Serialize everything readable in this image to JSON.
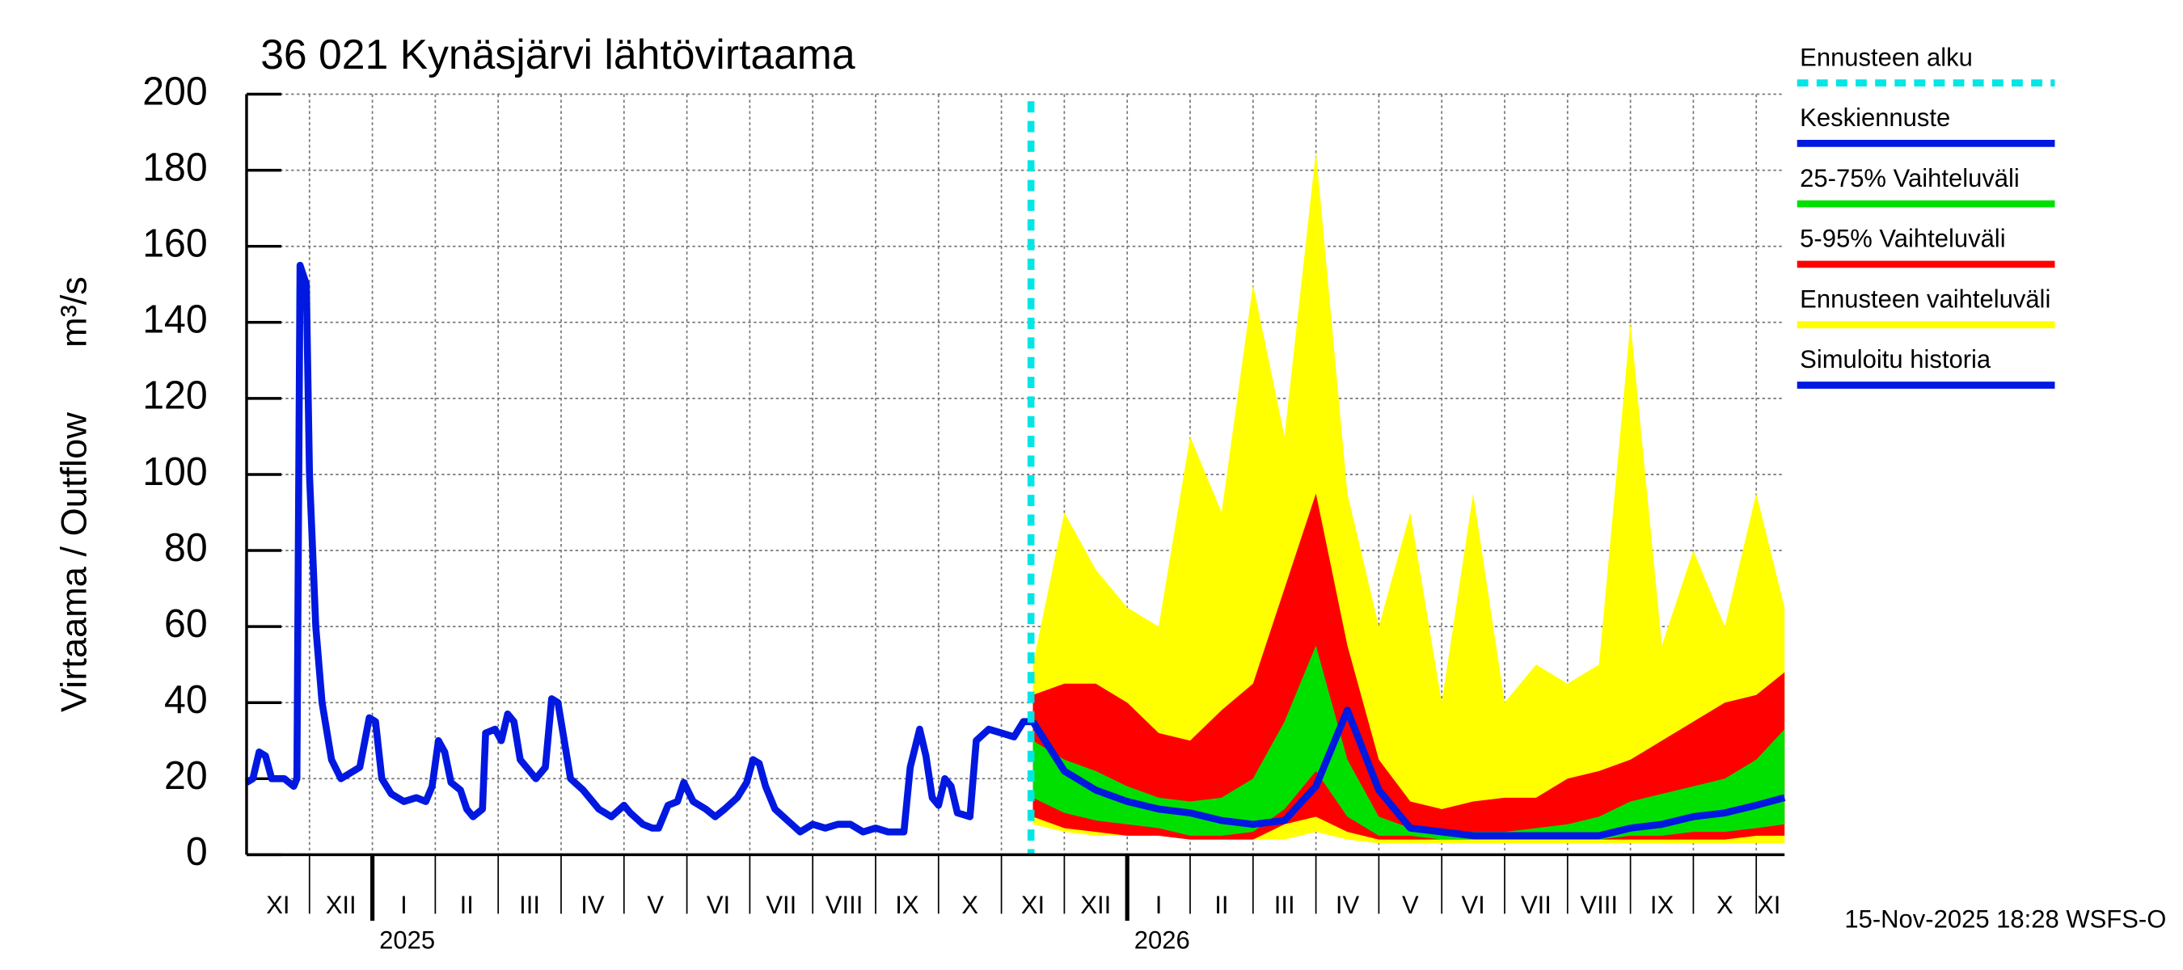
{
  "chart_data": {
    "type": "line",
    "title": "36 021 Kynäsjärvi lähtövirtaama",
    "y_label": "Virtaama / Outflow",
    "y_unit": "m³/s",
    "footer": "15-Nov-2025 18:28 WSFS-O",
    "ylim": [
      0,
      200
    ],
    "yticks": [
      0,
      20,
      40,
      60,
      80,
      100,
      120,
      140,
      160,
      180,
      200
    ],
    "xlim": [
      0,
      24.45
    ],
    "xgrid": [
      1,
      2,
      3,
      4,
      5,
      6,
      7,
      8,
      9,
      10,
      11,
      12,
      13,
      14,
      15,
      16,
      17,
      18,
      19,
      20,
      21,
      22,
      23,
      24
    ],
    "xticks": [
      {
        "value": 0.5,
        "label": "XI"
      },
      {
        "value": 1.5,
        "label": "XII"
      },
      {
        "value": 2.5,
        "label": "I"
      },
      {
        "value": 3.5,
        "label": "II"
      },
      {
        "value": 4.5,
        "label": "III"
      },
      {
        "value": 5.5,
        "label": "IV"
      },
      {
        "value": 6.5,
        "label": "V"
      },
      {
        "value": 7.5,
        "label": "VI"
      },
      {
        "value": 8.5,
        "label": "VII"
      },
      {
        "value": 9.5,
        "label": "VIII"
      },
      {
        "value": 10.5,
        "label": "IX"
      },
      {
        "value": 11.5,
        "label": "X"
      },
      {
        "value": 12.5,
        "label": "XI"
      },
      {
        "value": 13.5,
        "label": "XII"
      },
      {
        "value": 14.5,
        "label": "I"
      },
      {
        "value": 15.5,
        "label": "II"
      },
      {
        "value": 16.5,
        "label": "III"
      },
      {
        "value": 17.5,
        "label": "IV"
      },
      {
        "value": 18.5,
        "label": "V"
      },
      {
        "value": 19.5,
        "label": "VI"
      },
      {
        "value": 20.5,
        "label": "VII"
      },
      {
        "value": 21.5,
        "label": "VIII"
      },
      {
        "value": 22.5,
        "label": "IX"
      },
      {
        "value": 23.5,
        "label": "X"
      },
      {
        "value": 24.2,
        "label": "XI"
      }
    ],
    "year_ticks": [
      {
        "value": 2,
        "label": "2025"
      },
      {
        "value": 14,
        "label": "2026"
      }
    ],
    "grid": true,
    "series": [
      {
        "name": "Ennusteen alku",
        "kind": "vline",
        "color": "#00e5e5",
        "x_value": 12.47
      },
      {
        "name": "Keskiennuste",
        "kind": "line",
        "color": "#0018e0",
        "x": [
          12.5,
          13,
          13.5,
          14,
          14.5,
          15,
          15.5,
          16,
          16.5,
          17,
          17.5,
          18,
          18.5,
          19,
          19.5,
          20,
          20.5,
          21,
          21.5,
          22,
          22.5,
          23,
          23.5,
          24,
          24.45
        ],
        "values": [
          35,
          22,
          17,
          14,
          12,
          11,
          9,
          8,
          9,
          18,
          38,
          17,
          7,
          6,
          5,
          5,
          5,
          5,
          5,
          7,
          8,
          10,
          11,
          13,
          15
        ]
      },
      {
        "name": "25-75% Vaihteluväli",
        "kind": "band",
        "color": "#00e000",
        "x": [
          12.5,
          13,
          13.5,
          14,
          14.5,
          15,
          15.5,
          16,
          16.5,
          17,
          17.5,
          18,
          18.5,
          19,
          19.5,
          20,
          20.5,
          21,
          21.5,
          22,
          22.5,
          23,
          23.5,
          24,
          24.45
        ],
        "values": [
          30,
          25,
          22,
          18,
          15,
          14,
          15,
          20,
          35,
          55,
          25,
          10,
          7,
          6,
          6,
          6,
          7,
          8,
          10,
          14,
          16,
          18,
          20,
          25,
          33
        ],
        "lower": [
          15,
          11,
          9,
          8,
          7,
          5,
          5,
          6,
          12,
          22,
          10,
          5,
          5,
          4,
          4,
          4,
          4,
          4,
          4,
          5,
          5,
          6,
          6,
          7,
          8
        ]
      },
      {
        "name": "5-95% Vaihteluväli",
        "kind": "band",
        "color": "#ff0000",
        "x": [
          12.5,
          13,
          13.5,
          14,
          14.5,
          15,
          15.5,
          16,
          16.5,
          17,
          17.5,
          18,
          18.5,
          19,
          19.5,
          20,
          20.5,
          21,
          21.5,
          22,
          22.5,
          23,
          23.5,
          24,
          24.45
        ],
        "values": [
          42,
          45,
          45,
          40,
          32,
          30,
          38,
          45,
          70,
          95,
          55,
          25,
          14,
          12,
          14,
          15,
          15,
          20,
          22,
          25,
          30,
          35,
          40,
          42,
          48
        ],
        "lower": [
          10,
          7,
          6,
          5,
          5,
          4,
          4,
          4,
          8,
          10,
          6,
          4,
          4,
          4,
          4,
          4,
          4,
          4,
          4,
          4,
          4,
          4,
          4,
          5,
          5
        ]
      },
      {
        "name": "Ennusteen vaihteluväli",
        "kind": "band",
        "color": "#ffff00",
        "x": [
          12.5,
          13,
          13.5,
          14,
          14.5,
          15,
          15.5,
          16,
          16.5,
          17,
          17.5,
          18,
          18.5,
          19,
          19.5,
          20,
          20.5,
          21,
          21.5,
          22,
          22.5,
          23,
          23.5,
          24,
          24.45
        ],
        "values": [
          50,
          90,
          75,
          65,
          60,
          110,
          90,
          150,
          110,
          185,
          95,
          60,
          90,
          40,
          95,
          40,
          50,
          45,
          50,
          140,
          55,
          80,
          60,
          95,
          65
        ],
        "lower": [
          8,
          6,
          5,
          5,
          5,
          4,
          4,
          4,
          4,
          6,
          4,
          3,
          3,
          3,
          3,
          3,
          3,
          3,
          3,
          3,
          3,
          3,
          3,
          3,
          3
        ]
      },
      {
        "name": "Simuloitu historia",
        "kind": "line",
        "color": "#0018e0",
        "x": [
          0,
          0.1,
          0.2,
          0.3,
          0.4,
          0.6,
          0.75,
          0.8,
          0.85,
          0.95,
          1.0,
          1.1,
          1.2,
          1.35,
          1.5,
          1.7,
          1.8,
          1.95,
          2.05,
          2.15,
          2.3,
          2.5,
          2.7,
          2.85,
          2.95,
          3.05,
          3.15,
          3.25,
          3.4,
          3.5,
          3.6,
          3.75,
          3.8,
          3.95,
          4.05,
          4.15,
          4.25,
          4.35,
          4.5,
          4.6,
          4.75,
          4.85,
          4.95,
          5.05,
          5.15,
          5.35,
          5.6,
          5.8,
          6.0,
          6.1,
          6.3,
          6.45,
          6.55,
          6.7,
          6.85,
          6.95,
          7.1,
          7.3,
          7.45,
          7.6,
          7.8,
          7.95,
          8.05,
          8.15,
          8.25,
          8.4,
          8.6,
          8.8,
          9.0,
          9.2,
          9.4,
          9.6,
          9.8,
          10.0,
          10.2,
          10.45,
          10.55,
          10.7,
          10.8,
          10.9,
          11.0,
          11.1,
          11.2,
          11.3,
          11.5,
          11.6,
          11.8,
          12.0,
          12.2,
          12.35,
          12.47
        ],
        "values": [
          19,
          20,
          27,
          26,
          20,
          20,
          18,
          20,
          155,
          150,
          100,
          60,
          40,
          25,
          20,
          22,
          23,
          36,
          35,
          20,
          16,
          14,
          15,
          14,
          18,
          30,
          27,
          19,
          17,
          12,
          10,
          12,
          32,
          33,
          30,
          37,
          35,
          25,
          22,
          20,
          23,
          41,
          40,
          30,
          20,
          17,
          12,
          10,
          13,
          11,
          8,
          7,
          7,
          13,
          14,
          19,
          14,
          12,
          10,
          12,
          15,
          19,
          25,
          24,
          18,
          12,
          9,
          6,
          8,
          7,
          8,
          8,
          6,
          7,
          6,
          6,
          23,
          33,
          26,
          15,
          13,
          20,
          18,
          11,
          10,
          30,
          33,
          32,
          31,
          35,
          35
        ]
      }
    ]
  }
}
